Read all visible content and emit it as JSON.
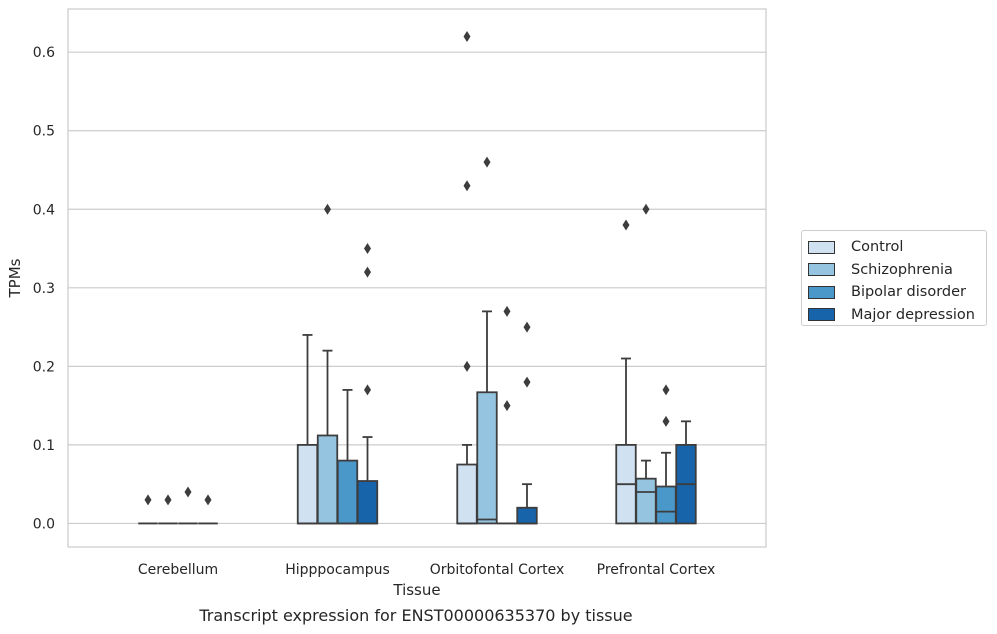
{
  "chart_data": {
    "type": "box",
    "title": "",
    "caption": "Transcript expression for ENST00000635370 by tissue",
    "xlabel": "Tissue",
    "ylabel": "TPMs",
    "ylim": [
      -0.03,
      0.655
    ],
    "yticks": [
      "0.0",
      "0.1",
      "0.2",
      "0.3",
      "0.4",
      "0.5",
      "0.6"
    ],
    "categories": [
      "Cerebellum",
      "Hipppocampus",
      "Orbitofontal Cortex",
      "Prefrontal Cortex"
    ],
    "grid": true,
    "legend_position": "right",
    "colors": {
      "Control": "#d0e1f2",
      "Schizophrenia": "#94c4df",
      "Bipolar disorder": "#4a98c9",
      "Major depression": "#1764ab",
      "edge": "#3d3d3d",
      "grid": "#cccccc",
      "frame": "#cccccc"
    },
    "series": [
      {
        "name": "Control",
        "boxes": [
          {
            "q1": 0,
            "median": 0,
            "q3": 0,
            "whislo": 0,
            "whishi": 0,
            "fliers": [
              0.03
            ]
          },
          {
            "q1": 0,
            "median": 0,
            "q3": 0.1,
            "whislo": 0,
            "whishi": 0.24,
            "fliers": []
          },
          {
            "q1": 0,
            "median": 0,
            "q3": 0.075,
            "whislo": 0,
            "whishi": 0.1,
            "fliers": [
              0.2,
              0.43,
              0.62
            ]
          },
          {
            "q1": 0,
            "median": 0.05,
            "q3": 0.1,
            "whislo": 0,
            "whishi": 0.21,
            "fliers": [
              0.38
            ]
          }
        ]
      },
      {
        "name": "Schizophrenia",
        "boxes": [
          {
            "q1": 0,
            "median": 0,
            "q3": 0,
            "whislo": 0,
            "whishi": 0,
            "fliers": [
              0.03
            ]
          },
          {
            "q1": 0,
            "median": 0,
            "q3": 0.112,
            "whislo": 0,
            "whishi": 0.22,
            "fliers": [
              0.4
            ]
          },
          {
            "q1": 0,
            "median": 0.005,
            "q3": 0.167,
            "whislo": 0,
            "whishi": 0.27,
            "fliers": [
              0.46
            ]
          },
          {
            "q1": 0,
            "median": 0.04,
            "q3": 0.057,
            "whislo": 0,
            "whishi": 0.08,
            "fliers": [
              0.4
            ]
          }
        ]
      },
      {
        "name": "Bipolar disorder",
        "boxes": [
          {
            "q1": 0,
            "median": 0,
            "q3": 0,
            "whislo": 0,
            "whishi": 0,
            "fliers": [
              0.04
            ]
          },
          {
            "q1": 0,
            "median": 0,
            "q3": 0.08,
            "whislo": 0,
            "whishi": 0.17,
            "fliers": []
          },
          {
            "q1": 0,
            "median": 0,
            "q3": 0,
            "whislo": 0,
            "whishi": 0,
            "fliers": [
              0.15,
              0.27
            ]
          },
          {
            "q1": 0,
            "median": 0.015,
            "q3": 0.047,
            "whislo": 0,
            "whishi": 0.09,
            "fliers": [
              0.13,
              0.17
            ]
          }
        ]
      },
      {
        "name": "Major depression",
        "boxes": [
          {
            "q1": 0,
            "median": 0,
            "q3": 0,
            "whislo": 0,
            "whishi": 0,
            "fliers": [
              0.03
            ]
          },
          {
            "q1": 0,
            "median": 0,
            "q3": 0.054,
            "whislo": 0,
            "whishi": 0.11,
            "fliers": [
              0.17,
              0.32,
              0.35
            ]
          },
          {
            "q1": 0,
            "median": 0,
            "q3": 0.02,
            "whislo": 0,
            "whishi": 0.05,
            "fliers": [
              0.18,
              0.25
            ]
          },
          {
            "q1": 0,
            "median": 0.05,
            "q3": 0.1,
            "whislo": 0,
            "whishi": 0.13,
            "fliers": []
          }
        ]
      }
    ]
  }
}
